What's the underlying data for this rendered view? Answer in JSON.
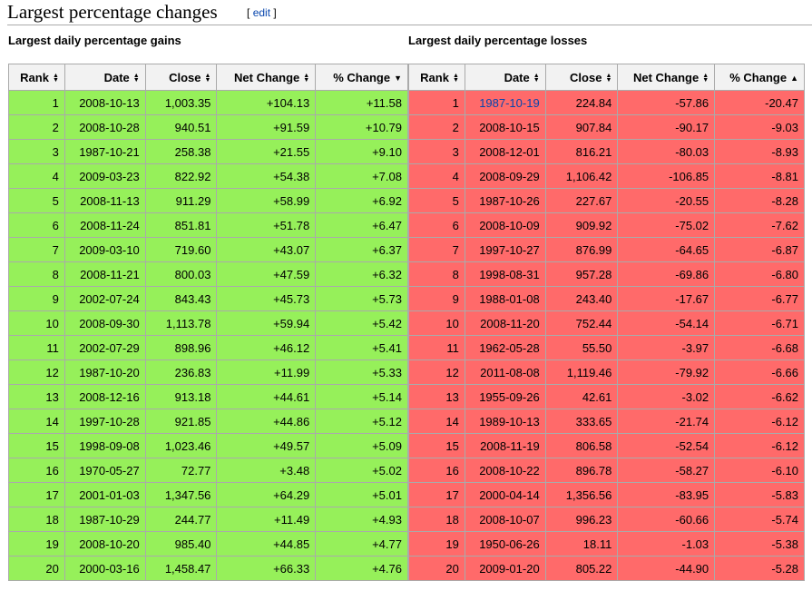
{
  "section": {
    "title": "Largest percentage changes",
    "edit_open": "[",
    "edit_label": "edit",
    "edit_close": "]"
  },
  "gains": {
    "caption": "Largest daily percentage gains",
    "headers": [
      "Rank",
      "Date",
      "Close",
      "Net Change",
      "% Change"
    ],
    "sort_icons": [
      "sort-both-icon",
      "sort-both-icon",
      "sort-both-icon",
      "sort-both-icon",
      "sort-descending-icon"
    ],
    "rows": [
      [
        "1",
        "2008-10-13",
        "1,003.35",
        "+104.13",
        "+11.58"
      ],
      [
        "2",
        "2008-10-28",
        "940.51",
        "+91.59",
        "+10.79"
      ],
      [
        "3",
        "1987-10-21",
        "258.38",
        "+21.55",
        "+9.10"
      ],
      [
        "4",
        "2009-03-23",
        "822.92",
        "+54.38",
        "+7.08"
      ],
      [
        "5",
        "2008-11-13",
        "911.29",
        "+58.99",
        "+6.92"
      ],
      [
        "6",
        "2008-11-24",
        "851.81",
        "+51.78",
        "+6.47"
      ],
      [
        "7",
        "2009-03-10",
        "719.60",
        "+43.07",
        "+6.37"
      ],
      [
        "8",
        "2008-11-21",
        "800.03",
        "+47.59",
        "+6.32"
      ],
      [
        "9",
        "2002-07-24",
        "843.43",
        "+45.73",
        "+5.73"
      ],
      [
        "10",
        "2008-09-30",
        "1,113.78",
        "+59.94",
        "+5.42"
      ],
      [
        "11",
        "2002-07-29",
        "898.96",
        "+46.12",
        "+5.41"
      ],
      [
        "12",
        "1987-10-20",
        "236.83",
        "+11.99",
        "+5.33"
      ],
      [
        "13",
        "2008-12-16",
        "913.18",
        "+44.61",
        "+5.14"
      ],
      [
        "14",
        "1997-10-28",
        "921.85",
        "+44.86",
        "+5.12"
      ],
      [
        "15",
        "1998-09-08",
        "1,023.46",
        "+49.57",
        "+5.09"
      ],
      [
        "16",
        "1970-05-27",
        "72.77",
        "+3.48",
        "+5.02"
      ],
      [
        "17",
        "2001-01-03",
        "1,347.56",
        "+64.29",
        "+5.01"
      ],
      [
        "18",
        "1987-10-29",
        "244.77",
        "+11.49",
        "+4.93"
      ],
      [
        "19",
        "2008-10-20",
        "985.40",
        "+44.85",
        "+4.77"
      ],
      [
        "20",
        "2000-03-16",
        "1,458.47",
        "+66.33",
        "+4.76"
      ]
    ]
  },
  "losses": {
    "caption": "Largest daily percentage losses",
    "headers": [
      "Rank",
      "Date",
      "Close",
      "Net Change",
      "% Change"
    ],
    "sort_icons": [
      "sort-both-icon",
      "sort-both-icon",
      "sort-both-icon",
      "sort-both-icon",
      "sort-ascending-icon"
    ],
    "rows": [
      [
        "1",
        "1987-10-19",
        "224.84",
        "-57.86",
        "-20.47"
      ],
      [
        "2",
        "2008-10-15",
        "907.84",
        "-90.17",
        "-9.03"
      ],
      [
        "3",
        "2008-12-01",
        "816.21",
        "-80.03",
        "-8.93"
      ],
      [
        "4",
        "2008-09-29",
        "1,106.42",
        "-106.85",
        "-8.81"
      ],
      [
        "5",
        "1987-10-26",
        "227.67",
        "-20.55",
        "-8.28"
      ],
      [
        "6",
        "2008-10-09",
        "909.92",
        "-75.02",
        "-7.62"
      ],
      [
        "7",
        "1997-10-27",
        "876.99",
        "-64.65",
        "-6.87"
      ],
      [
        "8",
        "1998-08-31",
        "957.28",
        "-69.86",
        "-6.80"
      ],
      [
        "9",
        "1988-01-08",
        "243.40",
        "-17.67",
        "-6.77"
      ],
      [
        "10",
        "2008-11-20",
        "752.44",
        "-54.14",
        "-6.71"
      ],
      [
        "11",
        "1962-05-28",
        "55.50",
        "-3.97",
        "-6.68"
      ],
      [
        "12",
        "2011-08-08",
        "1,119.46",
        "-79.92",
        "-6.66"
      ],
      [
        "13",
        "1955-09-26",
        "42.61",
        "-3.02",
        "-6.62"
      ],
      [
        "14",
        "1989-10-13",
        "333.65",
        "-21.74",
        "-6.12"
      ],
      [
        "15",
        "2008-11-19",
        "806.58",
        "-52.54",
        "-6.12"
      ],
      [
        "16",
        "2008-10-22",
        "896.78",
        "-58.27",
        "-6.10"
      ],
      [
        "17",
        "2000-04-14",
        "1,356.56",
        "-83.95",
        "-5.83"
      ],
      [
        "18",
        "2008-10-07",
        "996.23",
        "-60.66",
        "-5.74"
      ],
      [
        "19",
        "1950-06-26",
        "18.11",
        "-1.03",
        "-5.38"
      ],
      [
        "20",
        "2009-01-20",
        "805.22",
        "-44.90",
        "-5.28"
      ]
    ],
    "linked_row_index": 0,
    "link_color": "#0645ad"
  },
  "colors": {
    "gain_cell": "#96f05a",
    "loss_cell": "#ff6a6a",
    "header_cell": "#f2f2f2",
    "border": "#aaaaaa"
  }
}
